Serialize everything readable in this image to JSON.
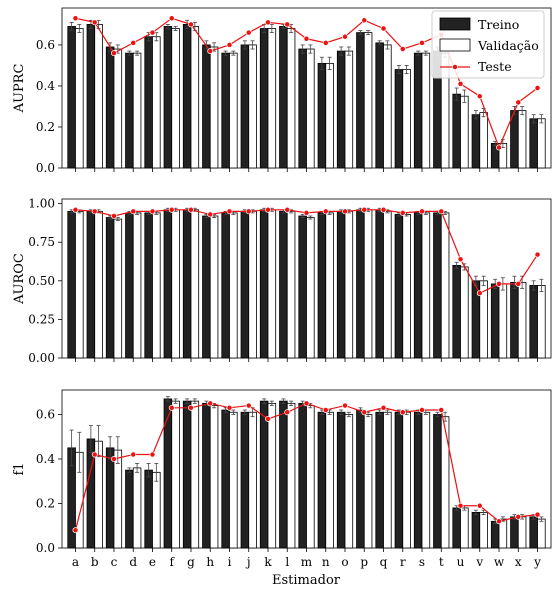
{
  "chart_data": {
    "type": "bar",
    "xlabel": "Estimador",
    "categories": [
      "a",
      "b",
      "c",
      "d",
      "e",
      "f",
      "g",
      "h",
      "i",
      "j",
      "k",
      "l",
      "m",
      "n",
      "o",
      "p",
      "q",
      "r",
      "s",
      "t",
      "u",
      "v",
      "w",
      "x",
      "y"
    ],
    "legend": {
      "placement": "top-right",
      "entries": [
        "Treino",
        "Validação",
        "Teste"
      ]
    },
    "colors": {
      "train": "#222222",
      "val": "#ffffff",
      "test": "#ee1111"
    },
    "panels": [
      {
        "ylabel": "AUPRC",
        "ylim": [
          0,
          0.78
        ],
        "yticks": [
          "0.0",
          "0.2",
          "0.4",
          "0.6"
        ],
        "series": [
          {
            "name": "Treino",
            "values": [
              0.69,
              0.7,
              0.59,
              0.56,
              0.64,
              0.69,
              0.7,
              0.6,
              0.56,
              0.6,
              0.68,
              0.69,
              0.58,
              0.51,
              0.57,
              0.66,
              0.61,
              0.48,
              0.56,
              0.57,
              0.36,
              0.26,
              0.12,
              0.28,
              0.24
            ],
            "errors": [
              0.02,
              0.02,
              0.02,
              0.01,
              0.02,
              0.01,
              0.02,
              0.02,
              0.01,
              0.02,
              0.02,
              0.01,
              0.02,
              0.03,
              0.02,
              0.01,
              0.01,
              0.02,
              0.01,
              0.02,
              0.03,
              0.02,
              0.01,
              0.02,
              0.02
            ]
          },
          {
            "name": "Validação",
            "values": [
              0.68,
              0.7,
              0.58,
              0.56,
              0.64,
              0.68,
              0.69,
              0.59,
              0.56,
              0.6,
              0.68,
              0.68,
              0.58,
              0.51,
              0.57,
              0.66,
              0.6,
              0.48,
              0.56,
              0.56,
              0.35,
              0.27,
              0.12,
              0.28,
              0.24
            ],
            "errors": [
              0.02,
              0.02,
              0.02,
              0.01,
              0.02,
              0.01,
              0.02,
              0.02,
              0.01,
              0.02,
              0.02,
              0.02,
              0.02,
              0.03,
              0.02,
              0.01,
              0.02,
              0.02,
              0.01,
              0.02,
              0.03,
              0.02,
              0.02,
              0.02,
              0.02
            ]
          },
          {
            "name": "Teste",
            "values": [
              0.73,
              0.71,
              0.56,
              0.61,
              0.66,
              0.73,
              0.7,
              0.57,
              0.6,
              0.66,
              0.71,
              0.7,
              0.63,
              0.61,
              0.64,
              0.72,
              0.68,
              0.58,
              0.61,
              0.65,
              0.41,
              0.35,
              0.1,
              0.32,
              0.39
            ]
          }
        ]
      },
      {
        "ylabel": "AUROC",
        "ylim": [
          0,
          1.03
        ],
        "yticks": [
          "0.00",
          "0.25",
          "0.50",
          "0.75",
          "1.00"
        ],
        "series": [
          {
            "name": "Treino",
            "values": [
              0.95,
              0.95,
              0.91,
              0.94,
              0.94,
              0.96,
              0.96,
              0.92,
              0.94,
              0.95,
              0.96,
              0.95,
              0.92,
              0.94,
              0.95,
              0.96,
              0.96,
              0.93,
              0.94,
              0.94,
              0.6,
              0.5,
              0.48,
              0.49,
              0.47
            ],
            "errors": [
              0.01,
              0.01,
              0.01,
              0.01,
              0.01,
              0.01,
              0.01,
              0.01,
              0.01,
              0.01,
              0.01,
              0.01,
              0.01,
              0.01,
              0.01,
              0.01,
              0.01,
              0.01,
              0.01,
              0.01,
              0.02,
              0.03,
              0.03,
              0.04,
              0.03
            ]
          },
          {
            "name": "Validação",
            "values": [
              0.95,
              0.95,
              0.9,
              0.94,
              0.94,
              0.96,
              0.96,
              0.92,
              0.94,
              0.95,
              0.96,
              0.95,
              0.91,
              0.94,
              0.95,
              0.96,
              0.95,
              0.93,
              0.94,
              0.94,
              0.59,
              0.5,
              0.48,
              0.49,
              0.47
            ],
            "errors": [
              0.01,
              0.01,
              0.01,
              0.01,
              0.01,
              0.01,
              0.01,
              0.01,
              0.01,
              0.01,
              0.01,
              0.01,
              0.01,
              0.01,
              0.01,
              0.01,
              0.01,
              0.01,
              0.01,
              0.01,
              0.02,
              0.03,
              0.04,
              0.04,
              0.04
            ]
          },
          {
            "name": "Teste",
            "values": [
              0.96,
              0.95,
              0.92,
              0.95,
              0.95,
              0.96,
              0.96,
              0.93,
              0.95,
              0.95,
              0.96,
              0.96,
              0.94,
              0.95,
              0.95,
              0.96,
              0.96,
              0.94,
              0.95,
              0.95,
              0.64,
              0.42,
              0.48,
              0.48,
              0.67
            ]
          }
        ]
      },
      {
        "ylabel": "f1",
        "ylim": [
          0,
          0.71
        ],
        "yticks": [
          "0.0",
          "0.2",
          "0.4",
          "0.6"
        ],
        "series": [
          {
            "name": "Treino",
            "values": [
              0.45,
              0.49,
              0.45,
              0.35,
              0.35,
              0.67,
              0.66,
              0.65,
              0.62,
              0.61,
              0.66,
              0.66,
              0.65,
              0.61,
              0.61,
              0.62,
              0.61,
              0.61,
              0.61,
              0.6,
              0.18,
              0.16,
              0.12,
              0.14,
              0.14
            ],
            "errors": [
              0.08,
              0.06,
              0.05,
              0.01,
              0.03,
              0.01,
              0.01,
              0.01,
              0.01,
              0.01,
              0.01,
              0.01,
              0.01,
              0.01,
              0.01,
              0.01,
              0.01,
              0.01,
              0.01,
              0.01,
              0.01,
              0.01,
              0.01,
              0.01,
              0.01
            ]
          },
          {
            "name": "Validação",
            "values": [
              0.43,
              0.48,
              0.44,
              0.36,
              0.34,
              0.66,
              0.66,
              0.64,
              0.61,
              0.61,
              0.65,
              0.65,
              0.64,
              0.61,
              0.6,
              0.6,
              0.61,
              0.61,
              0.61,
              0.59,
              0.18,
              0.16,
              0.13,
              0.14,
              0.13
            ],
            "errors": [
              0.09,
              0.07,
              0.06,
              0.02,
              0.04,
              0.01,
              0.01,
              0.01,
              0.01,
              0.02,
              0.01,
              0.01,
              0.01,
              0.01,
              0.01,
              0.01,
              0.01,
              0.01,
              0.01,
              0.02,
              0.01,
              0.01,
              0.01,
              0.01,
              0.01
            ]
          },
          {
            "name": "Teste",
            "values": [
              0.08,
              0.42,
              0.4,
              0.42,
              0.42,
              0.63,
              0.63,
              0.65,
              0.63,
              0.64,
              0.58,
              0.61,
              0.65,
              0.62,
              0.64,
              0.61,
              0.63,
              0.61,
              0.62,
              0.62,
              0.19,
              0.19,
              0.12,
              0.14,
              0.15
            ]
          }
        ]
      }
    ]
  }
}
